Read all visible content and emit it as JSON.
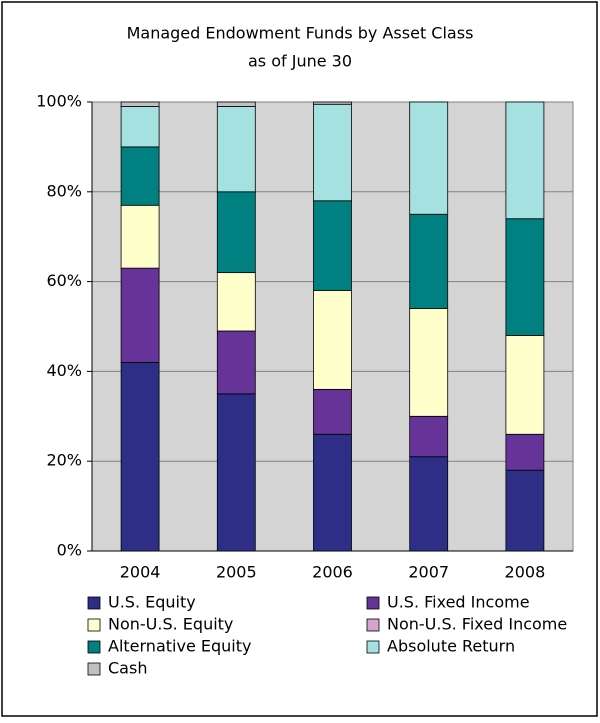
{
  "chart_data": {
    "type": "stacked_bar",
    "title": [
      "Managed Endowment Funds by Asset Class",
      "as of June 30"
    ],
    "categories": [
      "2004",
      "2005",
      "2006",
      "2007",
      "2008"
    ],
    "series": [
      {
        "name": "U.S. Equity",
        "color": "#2e2e86",
        "values": [
          42,
          35,
          26,
          21,
          18
        ]
      },
      {
        "name": "U.S. Fixed Income",
        "color": "#663399",
        "values": [
          21,
          14,
          10,
          9,
          8
        ]
      },
      {
        "name": "Non-U.S. Equity",
        "color": "#ffffcc",
        "values": [
          14,
          13,
          22,
          24,
          22
        ]
      },
      {
        "name": "Non-U.S. Fixed Income",
        "color": "#d9a3d0",
        "values": [
          0,
          0,
          0,
          0,
          0
        ]
      },
      {
        "name": "Alternative Equity",
        "color": "#008080",
        "values": [
          13,
          18,
          20,
          21,
          26
        ]
      },
      {
        "name": "Absolute Return",
        "color": "#a6e1e1",
        "values": [
          9,
          19,
          21.5,
          25,
          26
        ]
      },
      {
        "name": "Cash",
        "color": "#c0c0c0",
        "values": [
          1,
          1,
          0.5,
          0,
          0
        ]
      }
    ],
    "ylim": [
      0,
      100
    ],
    "yticks": [
      {
        "value": 0,
        "label": "0%"
      },
      {
        "value": 20,
        "label": "20%"
      },
      {
        "value": 40,
        "label": "40%"
      },
      {
        "value": 60,
        "label": "60%"
      },
      {
        "value": 80,
        "label": "80%"
      },
      {
        "value": 100,
        "label": "100%"
      }
    ],
    "grid": true
  }
}
